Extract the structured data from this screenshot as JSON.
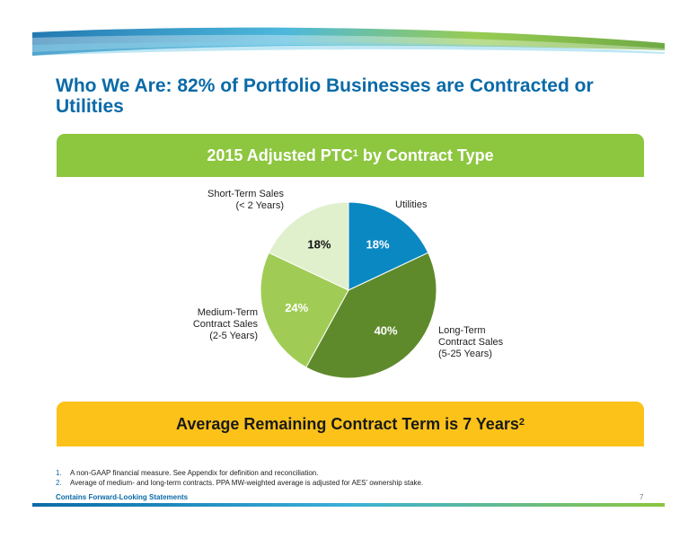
{
  "title": "Who We Are: 82% of Portfolio Businesses are Contracted or Utilities",
  "contract_band": {
    "text": "2015 Adjusted PTC",
    "sup": "1",
    "suffix": " by Contract Type"
  },
  "term_band": {
    "text": "Average Remaining Contract Term is 7 Years",
    "sup": "2"
  },
  "colors": {
    "title": "#0a6aa8",
    "green_band": "#8dc63f",
    "yellow_band": "#fcc219",
    "utilities": "#0a88c2",
    "long_term": "#5e8a2c",
    "medium_term": "#a0cc55",
    "short_term": "#e0efcc"
  },
  "chart_data": {
    "type": "pie",
    "title": "2015 Adjusted PTC1 by Contract Type",
    "slices": [
      {
        "name": "Utilities",
        "value": 18,
        "label": "18%",
        "color": "#0a88c2",
        "legend": [
          "Utilities"
        ]
      },
      {
        "name": "Long-Term Contract Sales (5-25 Years)",
        "value": 40,
        "label": "40%",
        "color": "#5e8a2c",
        "legend": [
          "Long-Term",
          "Contract Sales",
          "(5-25 Years)"
        ]
      },
      {
        "name": "Medium-Term Contract Sales (2-5 Years)",
        "value": 24,
        "label": "24%",
        "color": "#a0cc55",
        "legend": [
          "Medium-Term",
          "Contract Sales",
          "(2-5 Years)"
        ]
      },
      {
        "name": "Short-Term Sales (< 2 Years)",
        "value": 18,
        "label": "18%",
        "color": "#e0efcc",
        "legend": [
          "Short-Term Sales",
          "(< 2 Years)"
        ]
      }
    ]
  },
  "footnotes": [
    {
      "num": "1.",
      "text": "A non-GAAP financial measure.  See Appendix for definition and reconciliation."
    },
    {
      "num": "2.",
      "text": "Average of medium- and long-term contracts.  PPA MW-weighted average is adjusted for AES’ ownership stake."
    }
  ],
  "forward_looking": "Contains Forward-Looking Statements",
  "page_number": "7"
}
